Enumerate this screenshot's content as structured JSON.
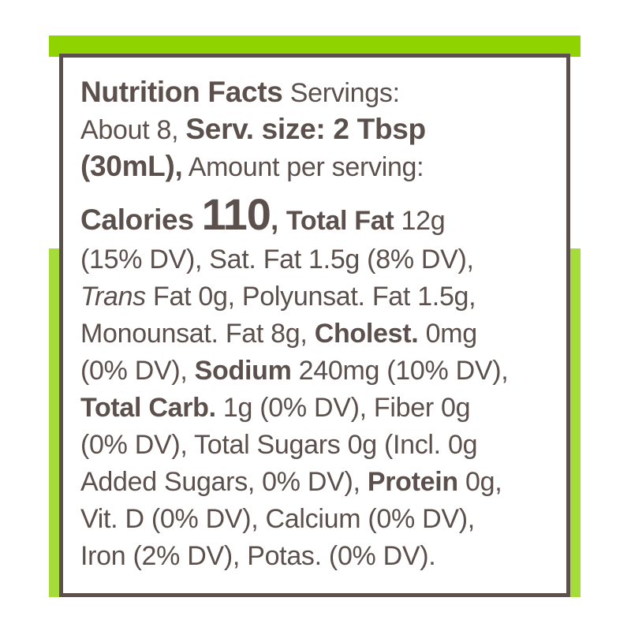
{
  "colors": {
    "text": "#5b504c",
    "accent_green": "#8fd400",
    "strip_green": "#a6dc3a"
  },
  "label": {
    "lines": [
      {
        "segs": [
          {
            "t": "Nutrition Facts",
            "s": "h"
          },
          {
            "t": " Servings:",
            "s": ""
          }
        ]
      },
      {
        "segs": [
          {
            "t": "About 8, ",
            "s": ""
          },
          {
            "t": "Serv. size: 2 Tbsp",
            "s": "h"
          }
        ]
      },
      {
        "segs": [
          {
            "t": "(30mL),",
            "s": "h"
          },
          {
            "t": " Amount per serving:",
            "s": ""
          }
        ]
      },
      {
        "cal": true,
        "segs": [
          {
            "t": "Calories ",
            "s": "h"
          },
          {
            "t": "110",
            "s": "big"
          },
          {
            "t": ", ",
            "s": "h"
          },
          {
            "t": "Total Fat",
            "s": "b"
          },
          {
            "t": " 12g",
            "s": ""
          }
        ]
      },
      {
        "segs": [
          {
            "t": "(15% DV), Sat. Fat 1.5g (8% DV),",
            "s": ""
          }
        ]
      },
      {
        "segs": [
          {
            "t": "Trans",
            "s": "i"
          },
          {
            "t": " Fat 0g, Polyunsat. Fat 1.5g,",
            "s": ""
          }
        ]
      },
      {
        "segs": [
          {
            "t": "Monounsat. Fat 8g, ",
            "s": ""
          },
          {
            "t": "Cholest.",
            "s": "b"
          },
          {
            "t": " 0mg",
            "s": ""
          }
        ]
      },
      {
        "segs": [
          {
            "t": "(0% DV), ",
            "s": ""
          },
          {
            "t": "Sodium",
            "s": "b"
          },
          {
            "t": " 240mg (10% DV),",
            "s": ""
          }
        ]
      },
      {
        "segs": [
          {
            "t": "Total Carb.",
            "s": "b"
          },
          {
            "t": " 1g (0% DV), Fiber 0g",
            "s": ""
          }
        ]
      },
      {
        "segs": [
          {
            "t": "(0% DV), Total Sugars 0g (Incl. 0g",
            "s": ""
          }
        ]
      },
      {
        "segs": [
          {
            "t": "Added Sugars, 0% DV), ",
            "s": ""
          },
          {
            "t": "Protein",
            "s": "b"
          },
          {
            "t": " 0g,",
            "s": ""
          }
        ]
      },
      {
        "segs": [
          {
            "t": "Vit. D (0% DV), Calcium (0% DV),",
            "s": ""
          }
        ]
      },
      {
        "segs": [
          {
            "t": "Iron (2% DV), Potas. (0% DV).",
            "s": ""
          }
        ]
      }
    ]
  }
}
